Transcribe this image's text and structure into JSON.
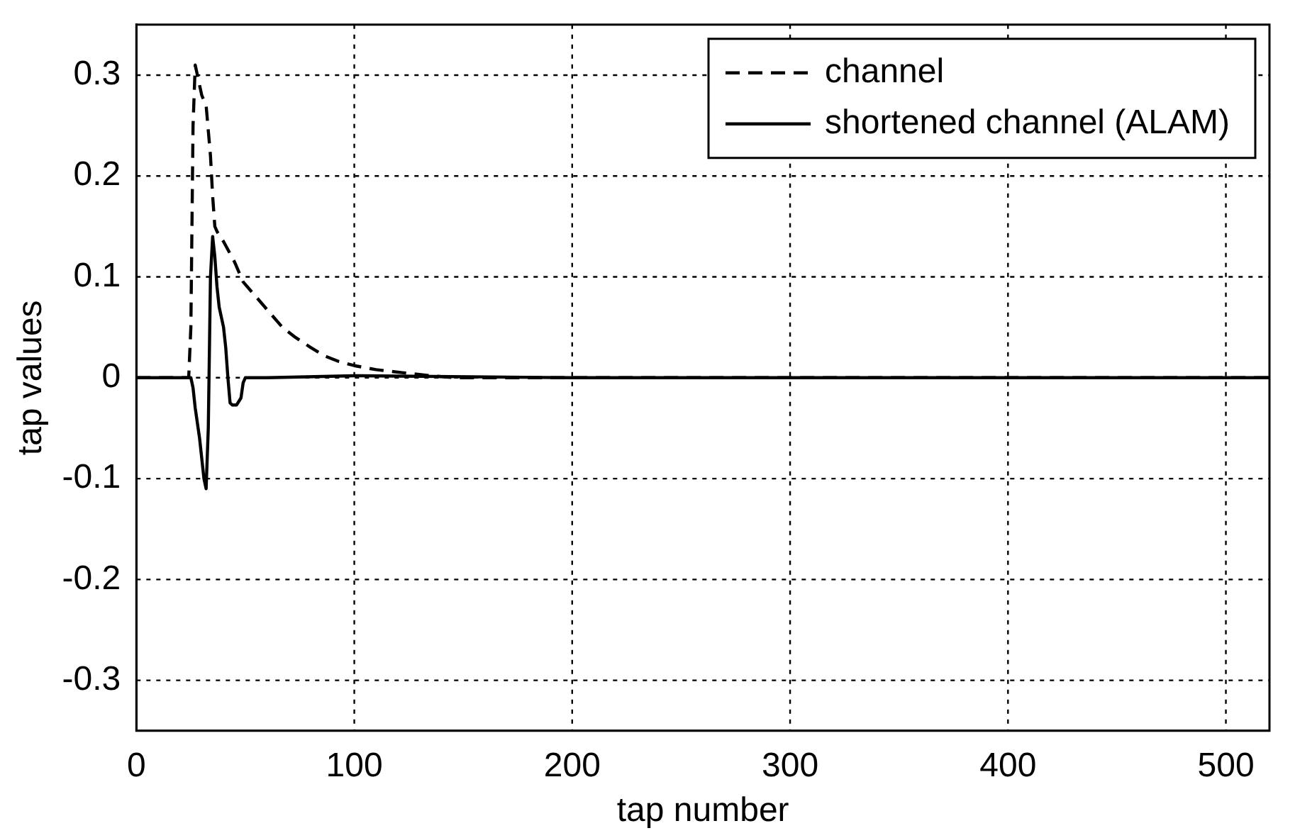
{
  "chart_data": {
    "type": "line",
    "xlabel": "tap number",
    "ylabel": "tap values",
    "xlim": [
      0,
      520
    ],
    "xticks": [
      0,
      100,
      200,
      300,
      400,
      500
    ],
    "ylim": [
      -0.35,
      0.35
    ],
    "yticks": [
      -0.3,
      -0.2,
      -0.1,
      0,
      0.1,
      0.2,
      0.3
    ],
    "grid": true,
    "legend": "top right",
    "marker": "none",
    "series": [
      {
        "name": "channel",
        "color": "#000000",
        "line_style": "dashed",
        "x": [
          0,
          24,
          25,
          26,
          27,
          29,
          30,
          32,
          34,
          35,
          36,
          37,
          40,
          45,
          49,
          55,
          61,
          67,
          73,
          80,
          86,
          93,
          100,
          110,
          122,
          135,
          146,
          160,
          200,
          300,
          400,
          520
        ],
        "values": [
          0,
          0,
          0.05,
          0.25,
          0.31,
          0.29,
          0.28,
          0.27,
          0.22,
          0.18,
          0.15,
          0.145,
          0.135,
          0.115,
          0.095,
          0.08,
          0.065,
          0.05,
          0.04,
          0.03,
          0.022,
          0.016,
          0.012,
          0.008,
          0.005,
          0.002,
          0,
          0,
          0,
          0,
          0,
          0
        ]
      },
      {
        "name": "shortened channel (ALAM)",
        "color": "#000000",
        "line_style": "solid",
        "x": [
          0,
          25,
          26,
          27,
          29,
          31,
          32,
          33,
          34,
          35,
          36,
          37,
          38,
          40,
          41,
          42,
          43,
          44,
          46,
          48,
          49,
          50,
          60,
          100,
          200,
          300,
          400,
          520
        ],
        "values": [
          0,
          0,
          -0.01,
          -0.03,
          -0.06,
          -0.1,
          -0.11,
          -0.05,
          0.1,
          0.14,
          0.12,
          0.09,
          0.07,
          0.05,
          0.03,
          0.0,
          -0.025,
          -0.027,
          -0.027,
          -0.02,
          -0.005,
          0,
          0,
          0.002,
          0,
          0,
          0,
          0
        ]
      }
    ]
  }
}
